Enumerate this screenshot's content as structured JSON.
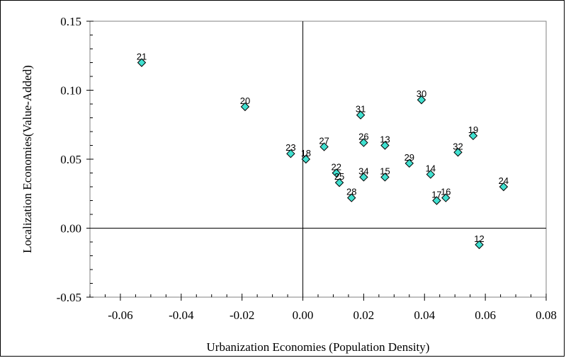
{
  "chart_data": {
    "type": "scatter",
    "title": "",
    "xlabel": "Urbanization Economies (Population Density)",
    "ylabel": "Localization Economies(Value-Added)",
    "xlim": [
      -0.07,
      0.08
    ],
    "ylim": [
      -0.05,
      0.15
    ],
    "x_ticks": [
      "-0.06",
      "-0.04",
      "-0.02",
      "0.00",
      "0.02",
      "0.04",
      "0.06",
      "0.08"
    ],
    "y_ticks": [
      "-0.05",
      "0.00",
      "0.05",
      "0.10",
      "0.15"
    ],
    "grid": false,
    "legend": "none",
    "marker_color": "#40E0D0",
    "points": [
      {
        "label": "21",
        "x": -0.053,
        "y": 0.12
      },
      {
        "label": "20",
        "x": -0.019,
        "y": 0.088
      },
      {
        "label": "23",
        "x": -0.004,
        "y": 0.054
      },
      {
        "label": "18",
        "x": 0.001,
        "y": 0.05
      },
      {
        "label": "27",
        "x": 0.007,
        "y": 0.059
      },
      {
        "label": "22",
        "x": 0.011,
        "y": 0.04
      },
      {
        "label": "25",
        "x": 0.012,
        "y": 0.033
      },
      {
        "label": "28",
        "x": 0.016,
        "y": 0.022
      },
      {
        "label": "31",
        "x": 0.019,
        "y": 0.082
      },
      {
        "label": "26",
        "x": 0.02,
        "y": 0.062
      },
      {
        "label": "34",
        "x": 0.02,
        "y": 0.037
      },
      {
        "label": "13",
        "x": 0.027,
        "y": 0.06
      },
      {
        "label": "15",
        "x": 0.027,
        "y": 0.037
      },
      {
        "label": "29",
        "x": 0.035,
        "y": 0.047
      },
      {
        "label": "30",
        "x": 0.039,
        "y": 0.093
      },
      {
        "label": "14",
        "x": 0.042,
        "y": 0.039
      },
      {
        "label": "17",
        "x": 0.044,
        "y": 0.02
      },
      {
        "label": "16",
        "x": 0.047,
        "y": 0.022
      },
      {
        "label": "32",
        "x": 0.051,
        "y": 0.055
      },
      {
        "label": "19",
        "x": 0.056,
        "y": 0.067
      },
      {
        "label": "12",
        "x": 0.058,
        "y": -0.012
      },
      {
        "label": "24",
        "x": 0.066,
        "y": 0.03
      }
    ]
  }
}
